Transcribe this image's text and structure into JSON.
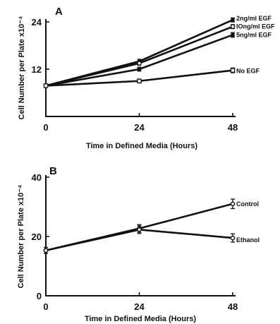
{
  "chart_data": [
    {
      "type": "line",
      "panel_label": "A",
      "xlabel": "Time in Defined Media (Hours)",
      "ylabel": "Cell Number per Plate x10⁻⁴",
      "x": [
        0,
        24,
        48
      ],
      "x_ticks": [
        "0",
        "24",
        "48"
      ],
      "y_ticks": [
        "12",
        "24"
      ],
      "xlim": [
        0,
        48
      ],
      "ylim": [
        0,
        24
      ],
      "grid": false,
      "legend": "inline labels at right end of lines",
      "series": [
        {
          "name": "2ng/ml EGF",
          "values": [
            7.8,
            14.0,
            24.5
          ],
          "errors": [
            0.4,
            0.5,
            0.5
          ],
          "marker": "filled-square"
        },
        {
          "name": "IOng/ml EGF",
          "values": [
            7.8,
            13.5,
            22.8
          ],
          "errors": [
            0.4,
            0.5,
            0.5
          ],
          "marker": "open-circle"
        },
        {
          "name": "5ng/ml EGF",
          "values": [
            7.8,
            12.0,
            20.7
          ],
          "errors": [
            0.4,
            0.5,
            0.6
          ],
          "marker": "filled-square"
        },
        {
          "name": "No EGF",
          "values": [
            7.8,
            9.0,
            11.7
          ],
          "errors": [
            0.4,
            0.5,
            0.6
          ],
          "marker": "open-square"
        }
      ]
    },
    {
      "type": "line",
      "panel_label": "B",
      "xlabel": "Time in Defined Media (Hours)",
      "ylabel": "Cell Number per Plate x10⁻⁴",
      "x": [
        0,
        24,
        48
      ],
      "x_ticks": [
        "0",
        "24",
        "48"
      ],
      "y_ticks": [
        "0",
        "20",
        "40"
      ],
      "xlim": [
        0,
        48
      ],
      "ylim": [
        0,
        40
      ],
      "grid": false,
      "legend": "inline labels at right end of lines",
      "series": [
        {
          "name": "Control",
          "values": [
            15.3,
            22.7,
            31.0
          ],
          "errors": [
            1.0,
            1.3,
            1.6
          ],
          "marker": "open-circle"
        },
        {
          "name": "Ethanol",
          "values": [
            15.3,
            22.3,
            19.5
          ],
          "errors": [
            1.0,
            1.3,
            1.4
          ],
          "marker": "open-circle"
        }
      ]
    }
  ]
}
